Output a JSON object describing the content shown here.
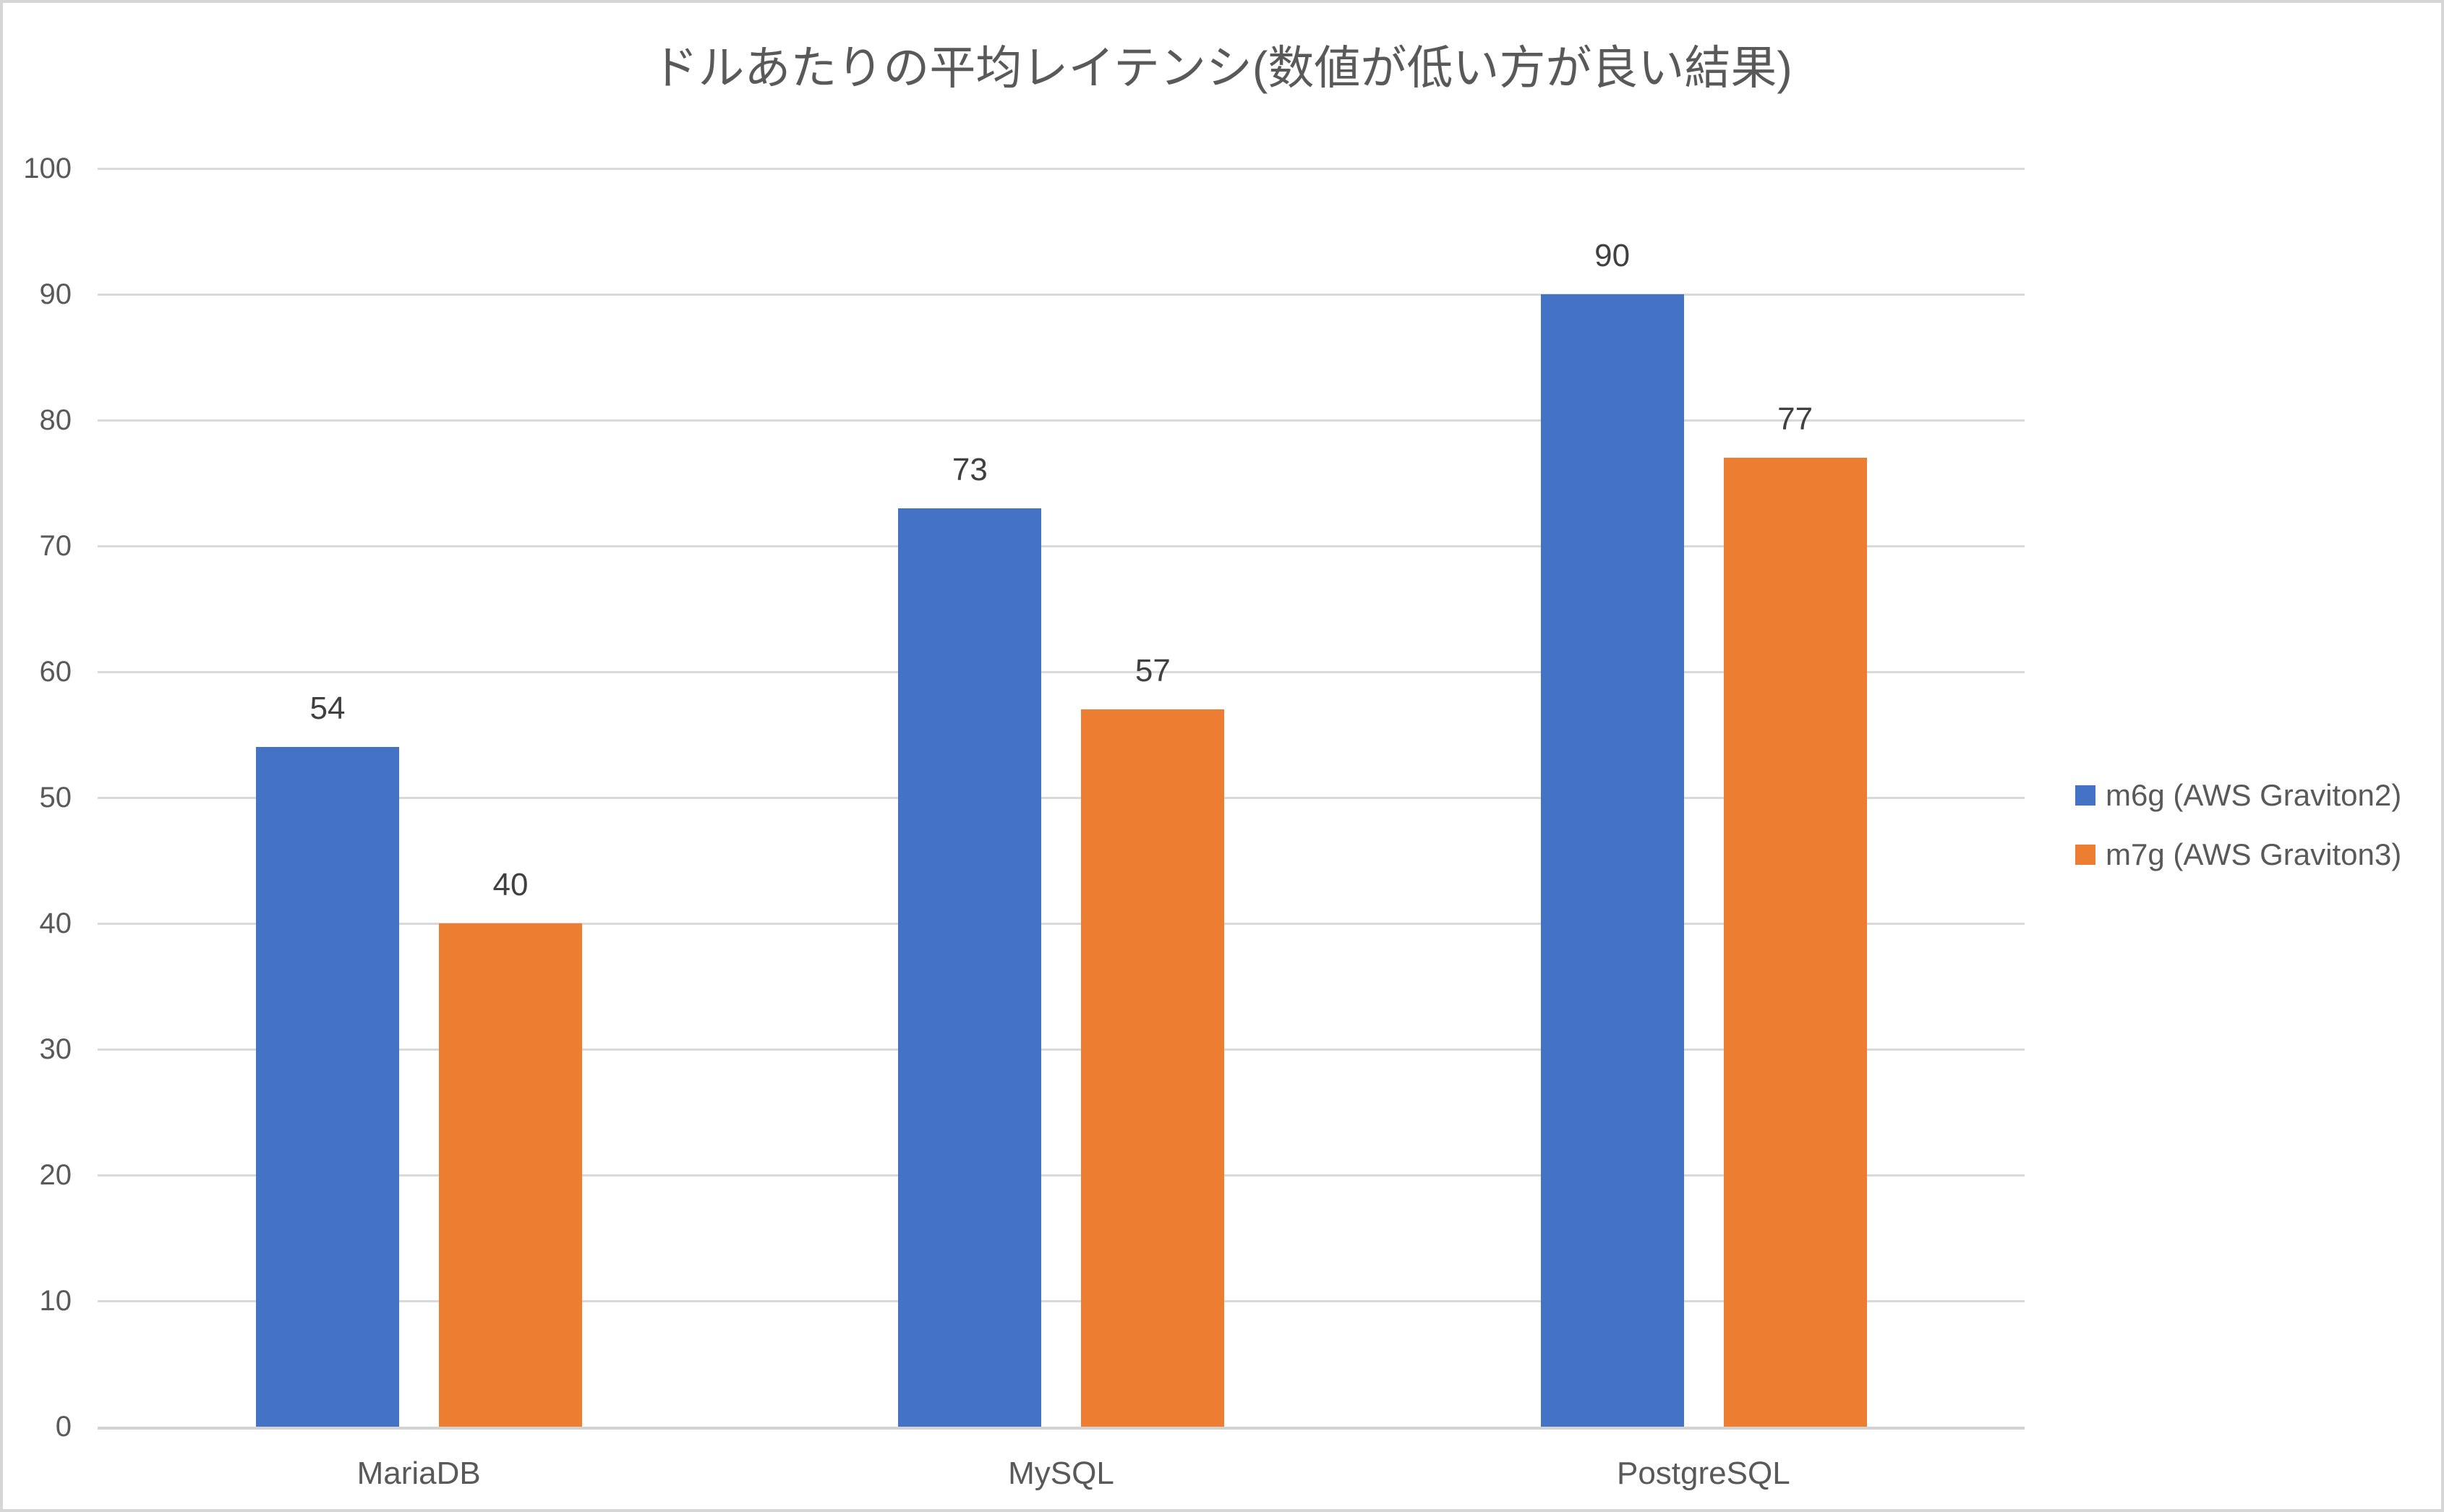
{
  "chart_data": {
    "type": "bar",
    "title": "ドルあたりの平均レイテンシ(数値が低い方が良い結果)",
    "categories": [
      "MariaDB",
      "MySQL",
      "PostgreSQL"
    ],
    "series": [
      {
        "name": "m6g (AWS Graviton2)",
        "color": "#4472C4",
        "values": [
          54,
          73,
          90
        ]
      },
      {
        "name": "m7g (AWS Graviton3)",
        "color": "#ED7D31",
        "values": [
          40,
          57,
          77
        ]
      }
    ],
    "y_axis": {
      "min": 0,
      "max": 100,
      "step": 10,
      "ticks": [
        "0",
        "10",
        "20",
        "30",
        "40",
        "50",
        "60",
        "70",
        "80",
        "90",
        "100"
      ]
    },
    "data_labels_shown": true,
    "grid": true,
    "legend_position": "right",
    "styles": {
      "background": "#FFFFFF",
      "border_color": "#D6D6D6",
      "grid_color": "#D9D9D9",
      "axis_color": "#D2D2D2",
      "tick_label_color": "#595959",
      "category_label_color": "#595959",
      "data_label_color": "#404040",
      "title_color": "#595959"
    }
  }
}
